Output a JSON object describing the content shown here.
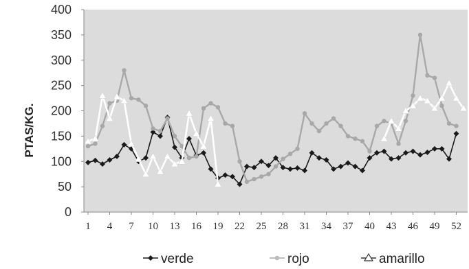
{
  "chart_data": {
    "type": "line",
    "title": "",
    "xlabel": "",
    "ylabel": "PTAS/KG.",
    "xlim": [
      1,
      53
    ],
    "ylim": [
      0,
      400
    ],
    "yticks": [
      0,
      50,
      100,
      150,
      200,
      250,
      300,
      350,
      400
    ],
    "xtick_labels": [
      "1",
      "4",
      "7",
      "10",
      "13",
      "16",
      "19",
      "22",
      "25",
      "28",
      "31",
      "34",
      "37",
      "40",
      "43",
      "46",
      "49",
      "52"
    ],
    "x": [
      1,
      2,
      3,
      4,
      5,
      6,
      7,
      8,
      9,
      10,
      11,
      12,
      13,
      14,
      15,
      16,
      17,
      18,
      19,
      20,
      21,
      22,
      23,
      24,
      25,
      26,
      27,
      28,
      29,
      30,
      31,
      32,
      33,
      34,
      35,
      36,
      37,
      38,
      39,
      40,
      41,
      42,
      43,
      44,
      45,
      46,
      47,
      48,
      49,
      50,
      51,
      52,
      53
    ],
    "legend_position": "bottom",
    "grid": false,
    "background": "#dcdcdc",
    "series": [
      {
        "name": "verde",
        "color": "#1a1a1a",
        "marker": "diamond",
        "values": [
          98,
          102,
          95,
          103,
          110,
          133,
          125,
          100,
          107,
          158,
          150,
          187,
          128,
          107,
          145,
          112,
          117,
          85,
          67,
          73,
          70,
          55,
          90,
          88,
          100,
          92,
          107,
          88,
          85,
          87,
          82,
          117,
          107,
          103,
          85,
          90,
          97,
          90,
          82,
          107,
          117,
          120,
          105,
          107,
          117,
          120,
          113,
          118,
          125,
          125,
          105,
          155,
          null
        ]
      },
      {
        "name": "rojo",
        "color": "#a8a8a8",
        "marker": "circle",
        "values": [
          130,
          135,
          170,
          215,
          220,
          280,
          225,
          222,
          210,
          165,
          160,
          185,
          150,
          130,
          107,
          110,
          205,
          215,
          207,
          175,
          170,
          100,
          60,
          65,
          70,
          75,
          90,
          105,
          115,
          125,
          195,
          175,
          160,
          175,
          185,
          170,
          150,
          145,
          140,
          120,
          170,
          180,
          175,
          135,
          180,
          230,
          350,
          270,
          265,
          210,
          175,
          170,
          null
        ]
      },
      {
        "name": "amarillo",
        "color": "#ffffff",
        "marker": "triangle",
        "values": [
          140,
          145,
          230,
          185,
          228,
          220,
          135,
          105,
          75,
          110,
          80,
          110,
          95,
          100,
          195,
          155,
          130,
          185,
          55,
          null,
          null,
          null,
          null,
          null,
          null,
          null,
          null,
          null,
          null,
          null,
          null,
          null,
          null,
          null,
          null,
          null,
          null,
          null,
          null,
          null,
          null,
          145,
          180,
          165,
          200,
          210,
          225,
          220,
          205,
          225,
          255,
          225,
          205
        ]
      }
    ]
  }
}
